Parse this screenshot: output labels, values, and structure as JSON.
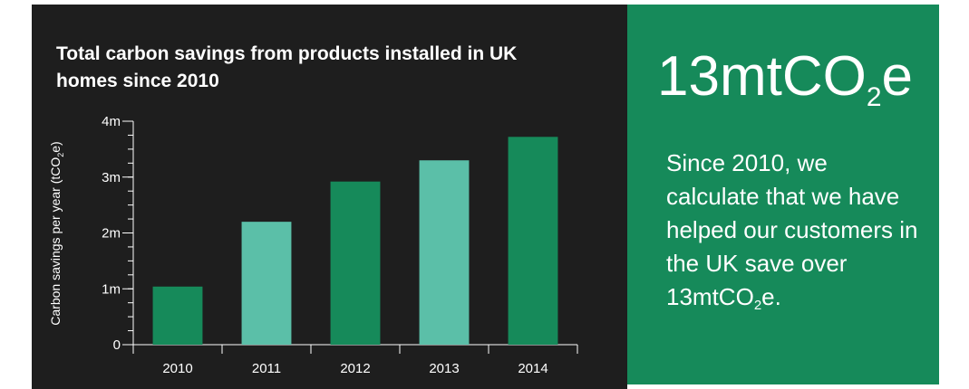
{
  "colors": {
    "panel_dark": "#1e1e1e",
    "panel_green": "#168a5a",
    "bar_dark": "#168a5a",
    "bar_light": "#5bbfa8",
    "axis": "#ffffff"
  },
  "chart_data": {
    "type": "bar",
    "title": "Total carbon savings from products installed in UK homes since 2010",
    "ylabel_main": "Carbon savings per year (tCO",
    "ylabel_sub": "2",
    "ylabel_end": "e)",
    "categories": [
      "2010",
      "2011",
      "2012",
      "2013",
      "2014"
    ],
    "values": [
      1040000,
      2200000,
      2920000,
      3300000,
      3720000
    ],
    "bar_colors": [
      "#168a5a",
      "#5bbfa8",
      "#168a5a",
      "#5bbfa8",
      "#168a5a"
    ],
    "ylim": [
      0,
      4000000
    ],
    "yticks": [
      {
        "value": 0,
        "label": "0"
      },
      {
        "value": 1000000,
        "label": "1m"
      },
      {
        "value": 2000000,
        "label": "2m"
      },
      {
        "value": 3000000,
        "label": "3m"
      },
      {
        "value": 4000000,
        "label": "4m"
      }
    ],
    "minor_tick_step": 250000,
    "grid": false
  },
  "stat": {
    "value_main": "13mtCO",
    "value_sub": "2",
    "value_end": "e",
    "description_main": "Since 2010, we calculate that we have helped our customers in the UK save over 13mtCO",
    "description_sub": "2",
    "description_end": "e."
  }
}
